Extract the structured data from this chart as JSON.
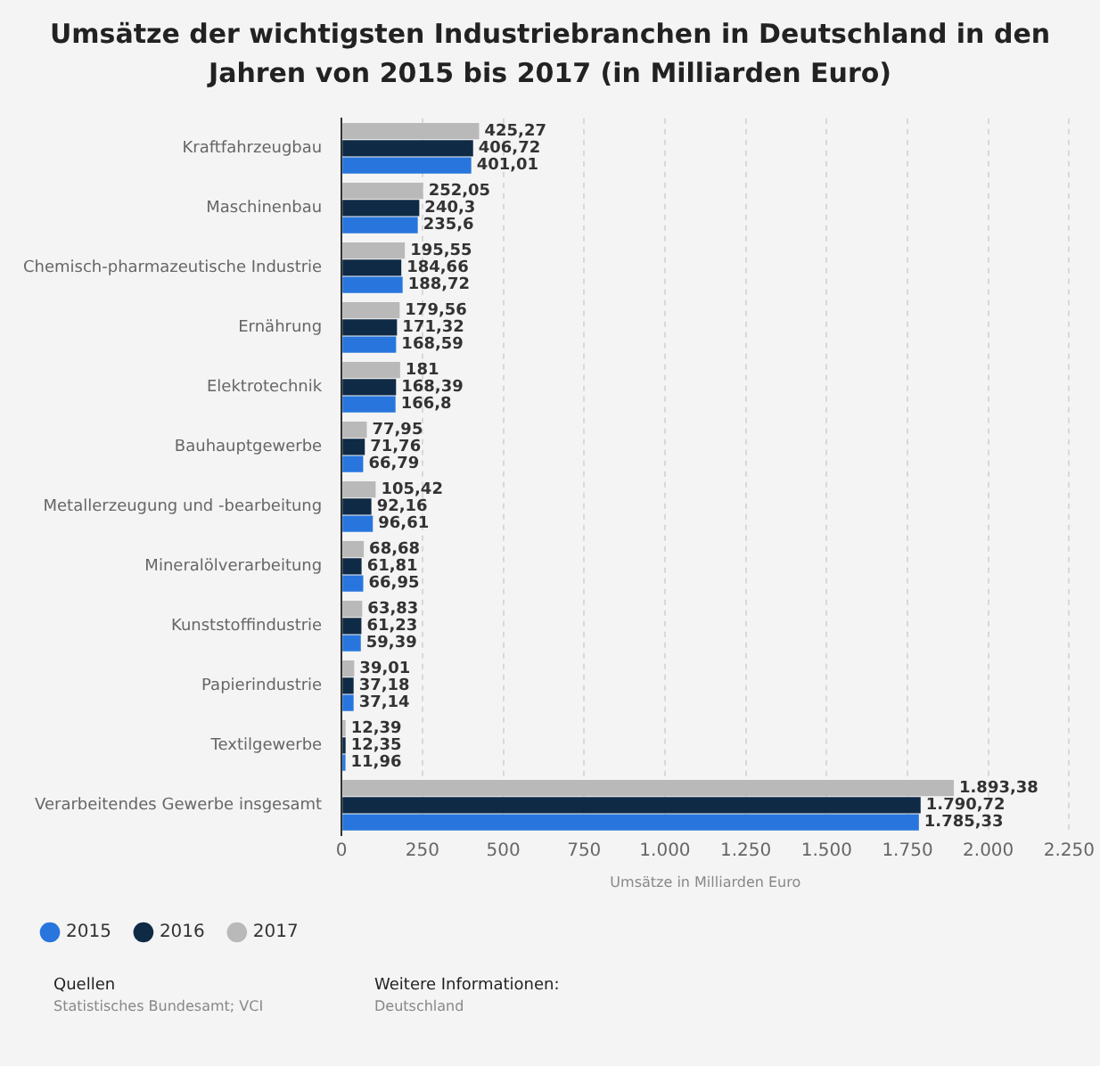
{
  "chart_data": {
    "type": "bar",
    "orientation": "horizontal",
    "title": "Umsätze der wichtigsten Industriebranchen in Deutschland in den Jahren von 2015 bis 2017 (in Milliarden Euro)",
    "xlabel": "Umsätze in Milliarden Euro",
    "categories": [
      "Kraftfahrzeugbau",
      "Maschinenbau",
      "Chemisch-pharmazeutische Industrie",
      "Ernährung",
      "Elektrotechnik",
      "Bauhauptgewerbe",
      "Metallerzeugung und -bearbeitung",
      "Mineralölverarbeitung",
      "Kunststoffindustrie",
      "Papierindustrie",
      "Textilgewerbe",
      "Verarbeitendes Gewerbe insgesamt"
    ],
    "series": [
      {
        "name": "2015",
        "color": "#2876dd",
        "values": [
          401.01,
          235.6,
          188.72,
          168.59,
          166.8,
          66.79,
          96.61,
          66.95,
          59.39,
          37.14,
          11.96,
          1785.33
        ],
        "value_labels": [
          "401,01",
          "235,6",
          "188,72",
          "168,59",
          "166,8",
          "66,79",
          "96,61",
          "66,95",
          "59,39",
          "37,14",
          "11,96",
          "1.785,33"
        ]
      },
      {
        "name": "2016",
        "color": "#0f2a44",
        "values": [
          406.72,
          240.3,
          184.66,
          171.32,
          168.39,
          71.76,
          92.16,
          61.81,
          61.23,
          37.18,
          12.35,
          1790.72
        ],
        "value_labels": [
          "406,72",
          "240,3",
          "184,66",
          "171,32",
          "168,39",
          "71,76",
          "92,16",
          "61,81",
          "61,23",
          "37,18",
          "12,35",
          "1.790,72"
        ]
      },
      {
        "name": "2017",
        "color": "#b9b9b9",
        "values": [
          425.27,
          252.05,
          195.55,
          179.56,
          181,
          77.95,
          105.42,
          68.68,
          63.83,
          39.01,
          12.39,
          1893.38
        ],
        "value_labels": [
          "425,27",
          "252,05",
          "195,55",
          "179,56",
          "181",
          "77,95",
          "105,42",
          "68,68",
          "63,83",
          "39,01",
          "12,39",
          "1.893,38"
        ]
      }
    ],
    "xlim": [
      0,
      2250
    ],
    "xticks": [
      0,
      250,
      500,
      750,
      {
        "value": 1000,
        "label": "1.000"
      },
      {
        "value": 1250,
        "label": "1.250"
      },
      {
        "value": 1500,
        "label": "1.500"
      },
      {
        "value": 1750,
        "label": "1.750"
      },
      {
        "value": 2000,
        "label": "2.000"
      },
      {
        "value": 2250,
        "label": "2.250"
      }
    ],
    "grid": "x",
    "legend": "bottom",
    "annotations": [
      "Quellen",
      "Statistisches Bundesamt; VCI",
      "Weitere Informationen:",
      "Deutschland"
    ]
  }
}
